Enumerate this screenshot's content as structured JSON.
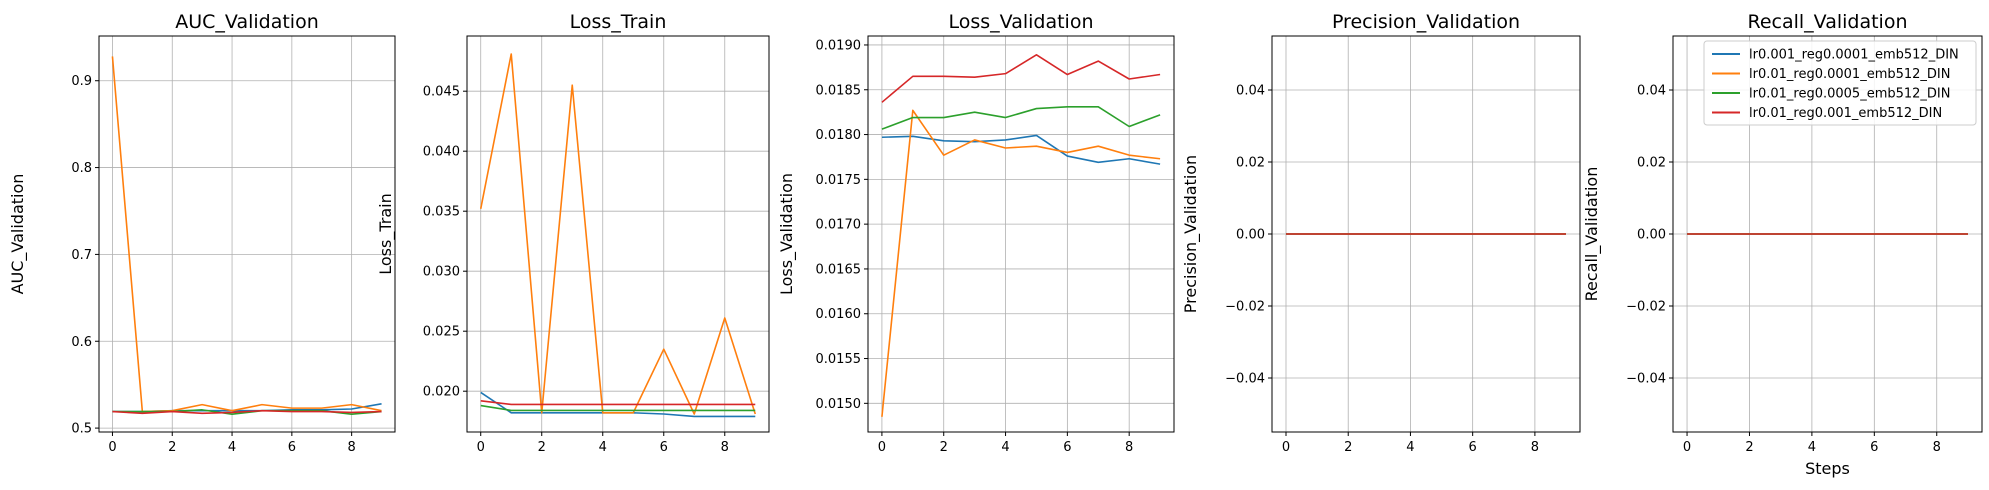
{
  "chart_data": [
    {
      "type": "line",
      "title": "AUC_Validation",
      "xlabel": "",
      "ylabel": "AUC_Validation",
      "xlim": [
        -0.45,
        9.45
      ],
      "ylim": [
        0.4955,
        0.9515
      ],
      "xticks": [
        0,
        2,
        4,
        6,
        8
      ],
      "yticks": [
        0.5,
        0.6,
        0.7,
        0.8,
        0.9
      ],
      "grid": true,
      "x": [
        0,
        1,
        2,
        3,
        4,
        5,
        6,
        7,
        8,
        9
      ],
      "series": [
        {
          "values": [
            0.519,
            0.519,
            0.52,
            0.52,
            0.52,
            0.52,
            0.521,
            0.521,
            0.522,
            0.528
          ],
          "color": "#1f77b4"
        },
        {
          "values": [
            0.928,
            0.519,
            0.52,
            0.527,
            0.52,
            0.527,
            0.523,
            0.523,
            0.527,
            0.52
          ],
          "color": "#ff7f0e"
        },
        {
          "values": [
            0.519,
            0.519,
            0.519,
            0.521,
            0.516,
            0.52,
            0.52,
            0.52,
            0.516,
            0.519
          ],
          "color": "#2ca02c"
        },
        {
          "values": [
            0.519,
            0.517,
            0.519,
            0.517,
            0.518,
            0.52,
            0.519,
            0.519,
            0.518,
            0.519
          ],
          "color": "#d62728"
        }
      ]
    },
    {
      "type": "line",
      "title": "Loss_Train",
      "xlabel": "",
      "ylabel": "Loss_Train",
      "xlim": [
        -0.45,
        9.45
      ],
      "ylim": [
        0.0166,
        0.0496
      ],
      "xticks": [
        0,
        2,
        4,
        6,
        8
      ],
      "yticks": [
        0.02,
        0.025,
        0.03,
        0.035,
        0.04,
        0.045
      ],
      "ytick_labels": [
        "0.020",
        "0.025",
        "0.030",
        "0.035",
        "0.040",
        "0.045"
      ],
      "grid": true,
      "x": [
        0,
        1,
        2,
        3,
        4,
        5,
        6,
        7,
        8,
        9
      ],
      "series": [
        {
          "values": [
            0.0199,
            0.0182,
            0.0182,
            0.0182,
            0.0182,
            0.0182,
            0.0181,
            0.0179,
            0.0179,
            0.0179
          ],
          "color": "#1f77b4"
        },
        {
          "values": [
            0.0352,
            0.0481,
            0.0182,
            0.0455,
            0.0182,
            0.0182,
            0.0235,
            0.0181,
            0.0261,
            0.0181
          ],
          "color": "#ff7f0e"
        },
        {
          "values": [
            0.0188,
            0.0184,
            0.0184,
            0.0184,
            0.0184,
            0.0184,
            0.0184,
            0.0184,
            0.0184,
            0.0184
          ],
          "color": "#2ca02c"
        },
        {
          "values": [
            0.0192,
            0.0189,
            0.0189,
            0.0189,
            0.0189,
            0.0189,
            0.0189,
            0.0189,
            0.0189,
            0.0189
          ],
          "color": "#d62728"
        }
      ]
    },
    {
      "type": "line",
      "title": "Loss_Validation",
      "xlabel": "",
      "ylabel": "Loss_Validation",
      "xlim": [
        -0.45,
        9.45
      ],
      "ylim": [
        0.01468,
        0.0191
      ],
      "xticks": [
        0,
        2,
        4,
        6,
        8
      ],
      "yticks": [
        0.015,
        0.0155,
        0.016,
        0.0165,
        0.017,
        0.0175,
        0.018,
        0.0185,
        0.019
      ],
      "ytick_labels": [
        "0.0150",
        "0.0155",
        "0.0160",
        "0.0165",
        "0.0170",
        "0.0175",
        "0.0180",
        "0.0185",
        "0.0190"
      ],
      "grid": true,
      "x": [
        0,
        1,
        2,
        3,
        4,
        5,
        6,
        7,
        8,
        9
      ],
      "series": [
        {
          "values": [
            0.01797,
            0.01798,
            0.01793,
            0.01792,
            0.01794,
            0.01799,
            0.01776,
            0.01769,
            0.01773,
            0.01767
          ],
          "color": "#1f77b4"
        },
        {
          "values": [
            0.01485,
            0.01827,
            0.01777,
            0.01794,
            0.01785,
            0.01787,
            0.0178,
            0.01787,
            0.01777,
            0.01773
          ],
          "color": "#ff7f0e"
        },
        {
          "values": [
            0.01806,
            0.01819,
            0.01819,
            0.01825,
            0.01819,
            0.01829,
            0.01831,
            0.01831,
            0.01809,
            0.01822
          ],
          "color": "#2ca02c"
        },
        {
          "values": [
            0.01836,
            0.01865,
            0.01865,
            0.01864,
            0.01868,
            0.01889,
            0.01867,
            0.01882,
            0.01862,
            0.01867
          ],
          "color": "#d62728"
        }
      ]
    },
    {
      "type": "line",
      "title": "Precision_Validation",
      "xlabel": "",
      "ylabel": "Precision_Validation",
      "xlim": [
        -0.45,
        9.45
      ],
      "ylim": [
        -0.055,
        0.055
      ],
      "xticks": [
        0,
        2,
        4,
        6,
        8
      ],
      "yticks": [
        -0.04,
        -0.02,
        0.0,
        0.02,
        0.04
      ],
      "ytick_labels": [
        "−0.04",
        "−0.02",
        "0.00",
        "0.02",
        "0.04"
      ],
      "grid": true,
      "x": [
        0,
        1,
        2,
        3,
        4,
        5,
        6,
        7,
        8,
        9
      ],
      "series": [
        {
          "values": [
            0,
            0,
            0,
            0,
            0,
            0,
            0,
            0,
            0,
            0
          ],
          "color": "#1f77b4"
        },
        {
          "values": [
            0,
            0,
            0,
            0,
            0,
            0,
            0,
            0,
            0,
            0
          ],
          "color": "#ff7f0e"
        },
        {
          "values": [
            0,
            0,
            0,
            0,
            0,
            0,
            0,
            0,
            0,
            0
          ],
          "color": "#2ca02c"
        },
        {
          "values": [
            0,
            0,
            0,
            0,
            0,
            0,
            0,
            0,
            0,
            0
          ],
          "color": "#d62728"
        }
      ]
    },
    {
      "type": "line",
      "title": "Recall_Validation",
      "xlabel": "Steps",
      "ylabel": "Recall_Validation",
      "xlim": [
        -0.45,
        9.45
      ],
      "ylim": [
        -0.055,
        0.055
      ],
      "xticks": [
        0,
        2,
        4,
        6,
        8
      ],
      "yticks": [
        -0.04,
        -0.02,
        0.0,
        0.02,
        0.04
      ],
      "ytick_labels": [
        "−0.04",
        "−0.02",
        "0.00",
        "0.02",
        "0.04"
      ],
      "grid": true,
      "legend": "top-right",
      "x": [
        0,
        1,
        2,
        3,
        4,
        5,
        6,
        7,
        8,
        9
      ],
      "series": [
        {
          "name": "lr0.001_reg0.0001_emb512_DIN",
          "values": [
            0,
            0,
            0,
            0,
            0,
            0,
            0,
            0,
            0,
            0
          ],
          "color": "#1f77b4"
        },
        {
          "name": "lr0.01_reg0.0001_emb512_DIN",
          "values": [
            0,
            0,
            0,
            0,
            0,
            0,
            0,
            0,
            0,
            0
          ],
          "color": "#ff7f0e"
        },
        {
          "name": "lr0.01_reg0.0005_emb512_DIN",
          "values": [
            0,
            0,
            0,
            0,
            0,
            0,
            0,
            0,
            0,
            0
          ],
          "color": "#2ca02c"
        },
        {
          "name": "lr0.01_reg0.001_emb512_DIN",
          "values": [
            0,
            0,
            0,
            0,
            0,
            0,
            0,
            0,
            0,
            0
          ],
          "color": "#d62728"
        }
      ]
    }
  ]
}
